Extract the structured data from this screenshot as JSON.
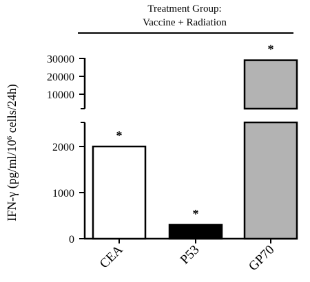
{
  "header": {
    "line1": "Treatment Group:",
    "line2": "Vaccine + Radiation"
  },
  "chart_data": {
    "type": "bar",
    "title": "",
    "ylabel_prefix": "IFN-γ (pg/ml/10",
    "ylabel_sup": "6",
    "ylabel_suffix": " cells/24h)",
    "categories": [
      "CEA",
      "P53",
      "GP70"
    ],
    "values": [
      2000,
      300,
      29000
    ],
    "significance": [
      "*",
      "*",
      "*"
    ],
    "bar_fill_colors": [
      "#ffffff",
      "#000000",
      "#b3b3b3"
    ],
    "axis_break": true,
    "lower_segment": {
      "ylim": [
        0,
        2500
      ],
      "ticks": [
        0,
        1000,
        2000
      ]
    },
    "upper_segment": {
      "ylim": [
        8000,
        30000
      ],
      "ticks": [
        10000,
        20000,
        30000
      ]
    },
    "grid": false,
    "legend": "none"
  }
}
